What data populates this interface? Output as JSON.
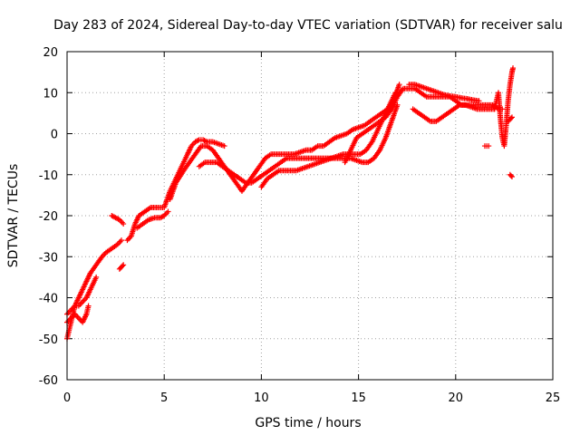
{
  "chart_data": {
    "type": "scatter",
    "title": "Day 283 of 2024, Sidereal Day-to-day VTEC variation (SDTVAR) for receiver salu",
    "xlabel": "GPS time / hours",
    "ylabel": "SDTVAR / TECUs",
    "xlim": [
      0,
      25
    ],
    "ylim": [
      -60,
      20
    ],
    "xticks": [
      "0",
      "5",
      "10",
      "15",
      "20",
      "25"
    ],
    "yticks": [
      "20",
      "10",
      "0",
      "-10",
      "-20",
      "-30",
      "-40",
      "-50",
      "-60"
    ],
    "marker": "+",
    "color": "#ff0000",
    "grid": true,
    "series": [
      {
        "name": "trace-a",
        "x": [
          0.0,
          0.1,
          0.2,
          0.3,
          0.4,
          0.5,
          0.6,
          0.8,
          1.0,
          1.2,
          1.5,
          1.8,
          2.0,
          2.3,
          2.6,
          2.8
        ],
        "y": [
          -50,
          -48,
          -46,
          -44,
          -42,
          -41,
          -40,
          -38,
          -36,
          -34,
          -32,
          -30,
          -29,
          -28,
          -27,
          -26
        ]
      },
      {
        "name": "trace-b",
        "x": [
          0.0,
          0.2,
          0.4,
          0.6,
          0.8,
          1.0,
          1.1
        ],
        "y": [
          -46,
          -45,
          -44,
          -45,
          -46,
          -44,
          -42
        ]
      },
      {
        "name": "trace-c",
        "x": [
          0.0,
          0.2,
          0.4,
          0.6,
          0.8,
          1.0,
          1.2,
          1.5
        ],
        "y": [
          -44,
          -43,
          -42,
          -42,
          -41,
          -40,
          -38,
          -35
        ]
      },
      {
        "name": "trace-d",
        "x": [
          2.3,
          2.5,
          2.7,
          2.9
        ],
        "y": [
          -20,
          -20.5,
          -21,
          -22
        ]
      },
      {
        "name": "trace-e",
        "x": [
          2.7,
          2.8,
          2.9
        ],
        "y": [
          -33,
          -32.5,
          -32
        ]
      },
      {
        "name": "trace-f",
        "x": [
          3.1,
          3.3,
          3.5,
          3.7,
          4.0,
          4.3,
          4.6,
          5.0,
          5.3,
          5.6,
          5.9,
          6.2,
          6.4,
          6.6,
          6.8,
          7.0,
          7.2,
          7.5,
          7.8,
          8.1
        ],
        "y": [
          -26,
          -25,
          -22,
          -20,
          -19,
          -18,
          -18,
          -18,
          -14,
          -11,
          -8,
          -5,
          -3,
          -2,
          -1.5,
          -1.5,
          -2,
          -2,
          -2.5,
          -3
        ]
      },
      {
        "name": "trace-g",
        "x": [
          3.6,
          3.9,
          4.2,
          4.5,
          4.8,
          5.0,
          5.2
        ],
        "y": [
          -23,
          -22,
          -21,
          -20.5,
          -20.5,
          -20,
          -19
        ]
      },
      {
        "name": "trace-h",
        "x": [
          5.3,
          5.6,
          6.0,
          6.3,
          6.6,
          6.9,
          7.2,
          7.5,
          7.8,
          8.1,
          8.4,
          8.7,
          9.0,
          9.3,
          9.6,
          9.9,
          10.2,
          10.5,
          10.8,
          11.1,
          11.4,
          11.7,
          12.0,
          12.3,
          12.6,
          12.9,
          13.2,
          13.5,
          13.8,
          14.1,
          14.4,
          14.7,
          15.0,
          15.3,
          15.6,
          15.9,
          16.2,
          16.5,
          16.8,
          17.1
        ],
        "y": [
          -16,
          -12,
          -9,
          -7,
          -5,
          -3,
          -3,
          -4,
          -6,
          -8,
          -10,
          -12,
          -14,
          -12,
          -10,
          -8,
          -6,
          -5,
          -5,
          -5,
          -5,
          -5,
          -4.5,
          -4,
          -4,
          -3,
          -3,
          -2,
          -1,
          -0.5,
          0,
          1,
          1.5,
          2,
          3,
          4,
          5,
          6,
          8,
          12
        ]
      },
      {
        "name": "trace-i",
        "x": [
          6.8,
          7.1,
          7.4,
          7.7,
          8.0,
          8.3,
          8.6,
          8.9,
          9.2,
          9.5,
          9.8,
          10.1,
          10.4,
          10.7,
          11.0,
          11.3,
          11.6,
          11.9,
          12.2,
          12.5,
          12.8,
          13.1,
          13.4,
          13.7,
          14.0,
          14.3,
          14.6,
          14.9,
          15.2,
          15.5,
          15.8,
          16.1,
          16.4,
          16.7,
          17.0
        ],
        "y": [
          -8,
          -7,
          -7,
          -7,
          -8,
          -9,
          -10,
          -11,
          -12,
          -12,
          -11,
          -10,
          -9,
          -8,
          -7,
          -6,
          -6,
          -6,
          -6,
          -6,
          -6,
          -6,
          -6,
          -6,
          -6,
          -6,
          -6,
          -6.5,
          -7,
          -7,
          -6,
          -4,
          -1,
          3,
          7
        ]
      },
      {
        "name": "trace-j",
        "x": [
          10.0,
          10.3,
          10.6,
          10.9,
          11.2,
          11.5,
          11.8,
          12.1,
          12.4,
          12.7,
          13.0,
          13.3,
          13.6,
          13.9,
          14.2,
          14.5,
          14.8,
          15.1,
          15.4,
          15.7,
          16.0,
          16.3,
          16.6,
          16.9
        ],
        "y": [
          -13,
          -11,
          -10,
          -9,
          -9,
          -9,
          -9,
          -8.5,
          -8,
          -7.5,
          -7,
          -6.5,
          -6,
          -5.5,
          -5,
          -5,
          -5,
          -5,
          -4,
          -2,
          1,
          4,
          7,
          10
        ]
      },
      {
        "name": "trace-k",
        "x": [
          14.3,
          14.6,
          14.9,
          15.2,
          15.5,
          15.8,
          16.1,
          16.4,
          16.7,
          17.0,
          17.3,
          17.6,
          17.9,
          18.2,
          18.5,
          18.8,
          19.1,
          19.4,
          19.7,
          20.0,
          20.3,
          20.6,
          21.0,
          21.3,
          21.6,
          21.9,
          22.2,
          22.4
        ],
        "y": [
          -7,
          -4,
          -1,
          0,
          1,
          2,
          3,
          4,
          6,
          9,
          11,
          11,
          11,
          10,
          9,
          9,
          9,
          9,
          9,
          8,
          7,
          7,
          7,
          7,
          7,
          7,
          6,
          6
        ]
      },
      {
        "name": "trace-l",
        "x": [
          17.8,
          18.1,
          18.4,
          18.7,
          19.0,
          19.3,
          19.6,
          19.9,
          20.2,
          20.5,
          20.8,
          21.1,
          21.4,
          21.7,
          22.0
        ],
        "y": [
          6,
          5,
          4,
          3,
          3,
          4,
          5,
          6,
          7,
          7,
          6.5,
          6,
          6,
          6,
          6
        ]
      },
      {
        "name": "trace-m",
        "x": [
          17.6,
          17.9,
          18.2,
          18.5,
          18.8,
          19.1,
          19.4,
          19.7,
          20.0,
          20.3,
          20.6,
          20.9,
          21.2
        ],
        "y": [
          12,
          12,
          11.5,
          11,
          10.5,
          10,
          9.5,
          9.2,
          9,
          8.7,
          8.5,
          8.2,
          8
        ]
      },
      {
        "name": "trace-n",
        "x": [
          22.0,
          22.1,
          22.2,
          22.3,
          22.4,
          22.5,
          22.6,
          22.7,
          22.8,
          22.9,
          22.95
        ],
        "y": [
          6,
          8,
          10,
          4,
          -1,
          -3,
          2,
          8,
          12,
          15,
          16
        ]
      },
      {
        "name": "trace-o",
        "x": [
          21.5,
          21.7
        ],
        "y": [
          -3,
          -3
        ]
      },
      {
        "name": "trace-p",
        "x": [
          22.8,
          22.9
        ],
        "y": [
          -10,
          -10.5
        ]
      },
      {
        "name": "trace-q",
        "x": [
          22.7,
          22.8,
          22.9
        ],
        "y": [
          3,
          3.5,
          4
        ]
      }
    ]
  }
}
